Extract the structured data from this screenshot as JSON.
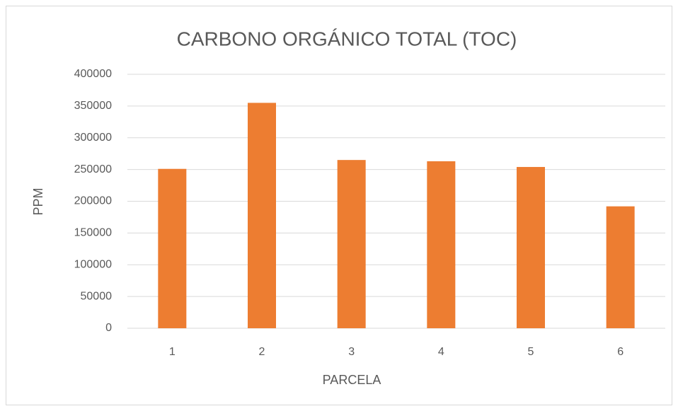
{
  "chart_data": {
    "type": "bar",
    "title": "CARBONO ORGÁNICO TOTAL (TOC)",
    "x_label": "PARCELA",
    "y_label": "PPM",
    "categories": [
      "1",
      "2",
      "3",
      "4",
      "5",
      "6"
    ],
    "values": [
      251000,
      355000,
      265000,
      263000,
      254000,
      192000
    ],
    "color": "#ed7d31",
    "ylim": [
      0,
      400000
    ],
    "yticks": [
      0,
      50000,
      100000,
      150000,
      200000,
      250000,
      300000,
      350000,
      400000
    ],
    "grid": true
  }
}
